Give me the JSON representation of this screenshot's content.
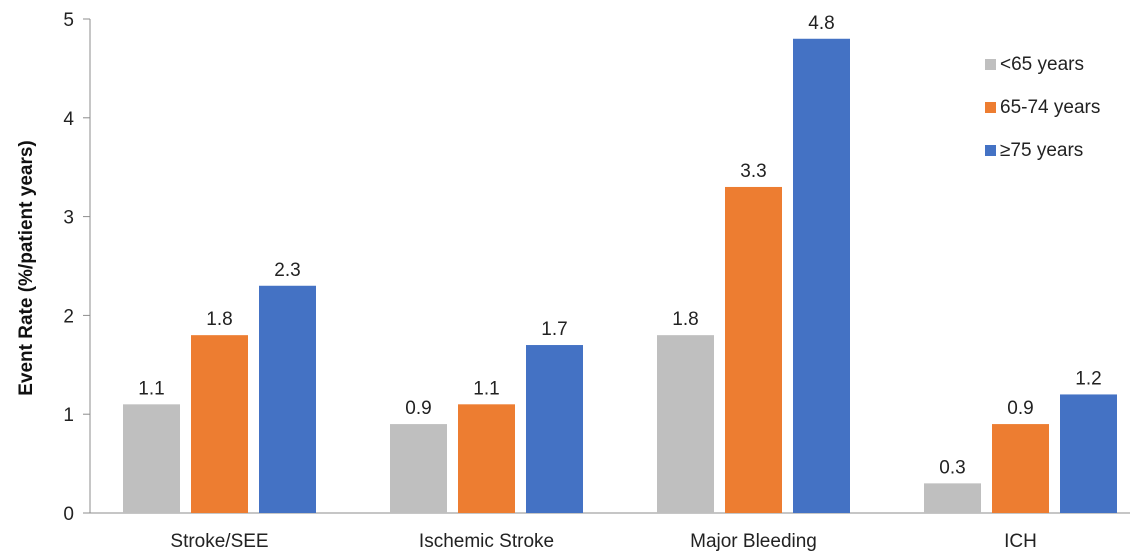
{
  "chart_data": {
    "type": "bar",
    "title": "",
    "xlabel": "",
    "ylabel": "Event Rate (%/patient years)",
    "ylim": [
      0,
      5
    ],
    "yticks": [
      0,
      1,
      2,
      3,
      4,
      5
    ],
    "grid": false,
    "legend_position": "top-right",
    "categories": [
      "Stroke/SEE",
      "Ischemic Stroke",
      "Major Bleeding",
      "ICH"
    ],
    "series": [
      {
        "name": "<65 years",
        "color": "#BFBFBF",
        "values": [
          1.1,
          0.9,
          1.8,
          0.3
        ]
      },
      {
        "name": "65-74 years",
        "color": "#ED7D31",
        "values": [
          1.8,
          1.1,
          3.3,
          0.9
        ]
      },
      {
        "name": "≥75 years",
        "color": "#4472C4",
        "values": [
          2.3,
          1.7,
          4.8,
          1.2
        ]
      }
    ]
  }
}
